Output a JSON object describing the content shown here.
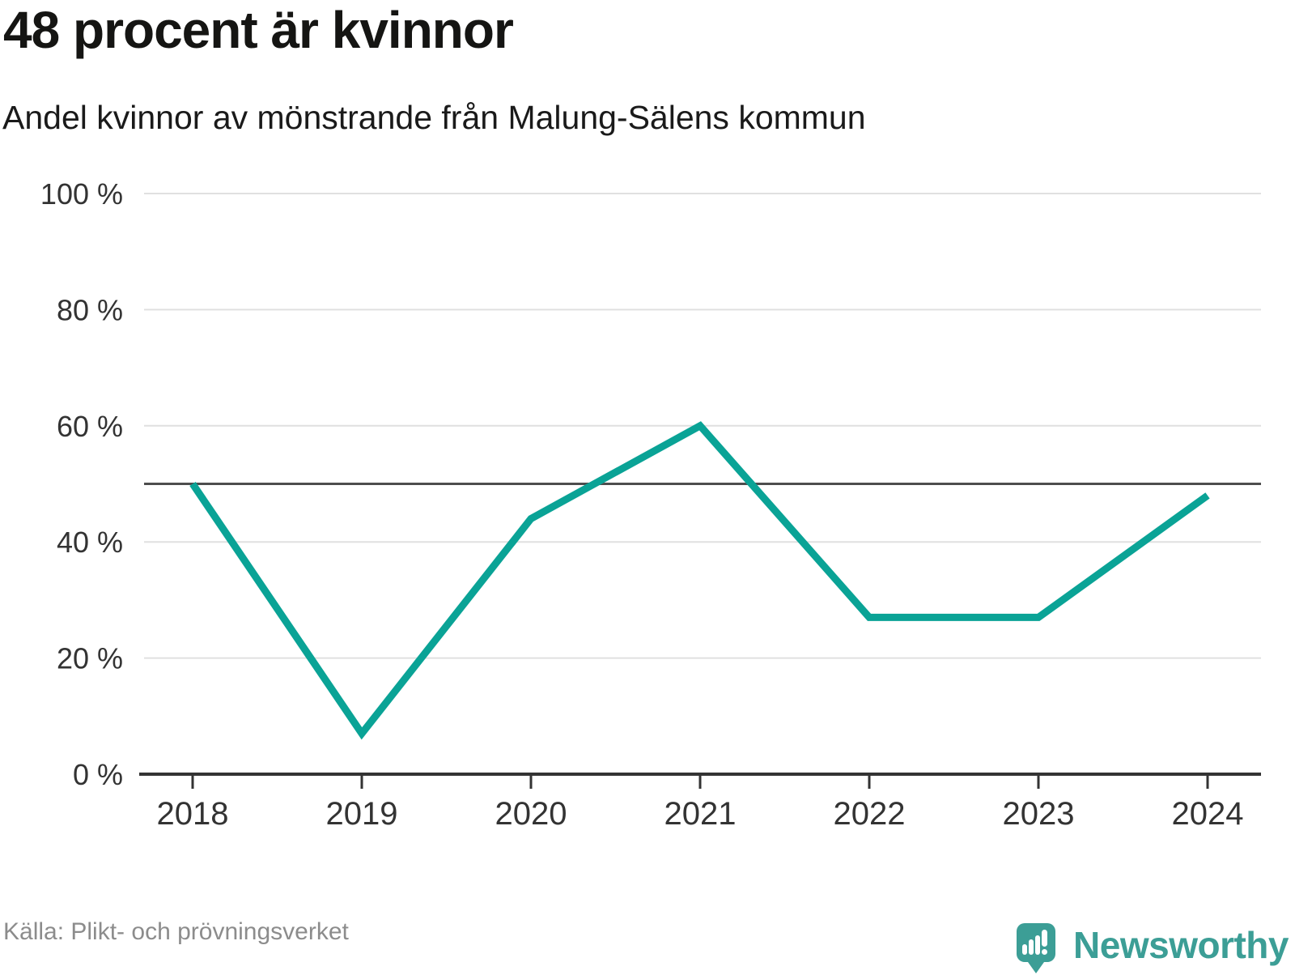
{
  "header": {
    "title": "48 procent är kvinnor",
    "subtitle": "Andel kvinnor av mönstrande från Malung-Sälens kommun"
  },
  "chart_data": {
    "type": "line",
    "title": "48 procent är kvinnor",
    "subtitle": "Andel kvinnor av mönstrande från Malung-Sälens kommun",
    "x": [
      2018,
      2019,
      2020,
      2021,
      2022,
      2023,
      2024
    ],
    "series": [
      {
        "name": "Andel kvinnor av mönstrande",
        "values": [
          50,
          7,
          44,
          60,
          27,
          27,
          48
        ]
      }
    ],
    "unit": "%",
    "ylim": [
      0,
      100
    ],
    "yticks": [
      0,
      20,
      40,
      60,
      80,
      100
    ],
    "ytick_suffix": " %",
    "reference_line": 50,
    "grid": true,
    "legend": "none",
    "line_color": "#0aa396"
  },
  "footer": {
    "source": "Källa: Plikt- och prövningsverket",
    "brand": "Newsworthy"
  },
  "colors": {
    "line": "#0aa396",
    "grid": "#e0e0e0",
    "reference": "#4d4d4d",
    "axis": "#333333",
    "tick_text": "#333333",
    "brand_teal": "#3c9e96",
    "source_text": "#8c8c8c"
  }
}
